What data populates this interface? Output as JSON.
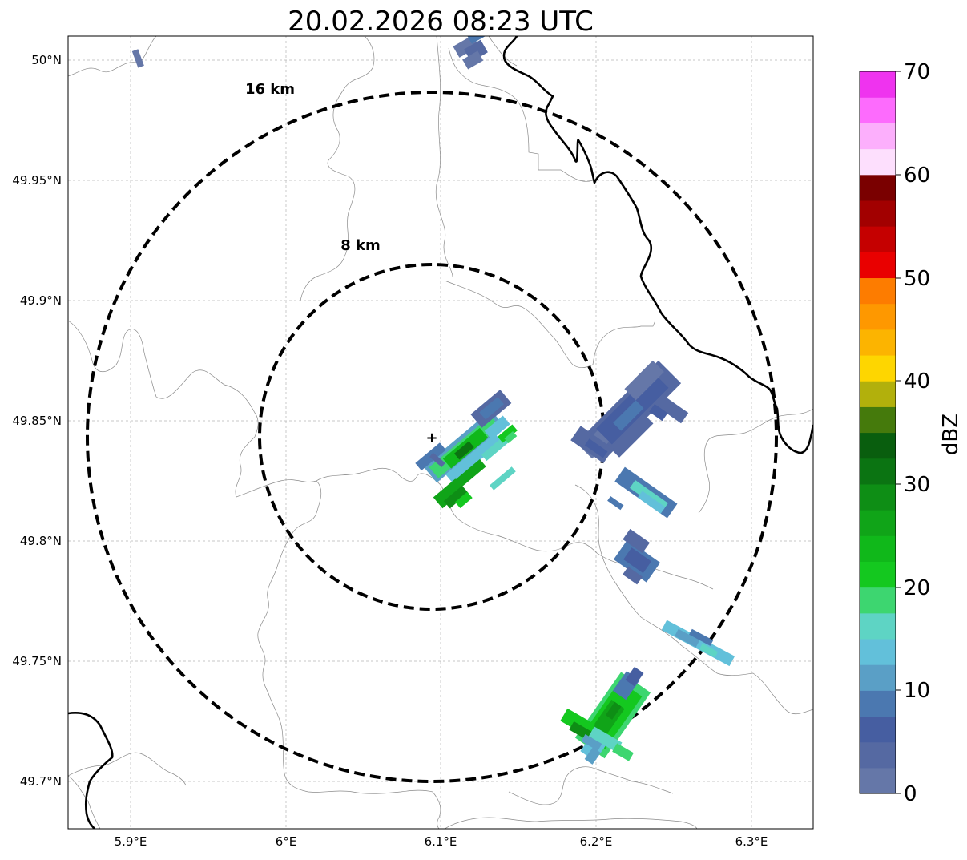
{
  "map": {
    "title": "20.02.2026 08:23 UTC",
    "lat_ticks": [
      "50°N",
      "49.95°N",
      "49.9°N",
      "49.85°N",
      "49.8°N",
      "49.75°N",
      "49.7°N"
    ],
    "lon_ticks": [
      "5.9°E",
      "6°E",
      "6.1°E",
      "6.2°E",
      "6.3°E"
    ],
    "ring_labels": [
      "16 km",
      "8 km"
    ],
    "radar_site_marker": "+"
  },
  "colorbar": {
    "label": "dBZ",
    "ticks": [
      "0",
      "10",
      "20",
      "30",
      "40",
      "50",
      "60",
      "70"
    ],
    "colors": [
      "#6577a8",
      "#5569a2",
      "#465ea1",
      "#4b78b0",
      "#5a9fc6",
      "#62c0da",
      "#5ed4c4",
      "#3dd670",
      "#14c81f",
      "#10b81a",
      "#10a418",
      "#0e8e15",
      "#0b7412",
      "#095e0e",
      "#457a0c",
      "#b2b00c",
      "#fed600",
      "#fcb400",
      "#fe9800",
      "#fd7c00",
      "#e90000",
      "#c50000",
      "#a20000",
      "#7a0000",
      "#fddffd",
      "#fcaffc",
      "#fd6bfd",
      "#ef33ef"
    ]
  }
}
